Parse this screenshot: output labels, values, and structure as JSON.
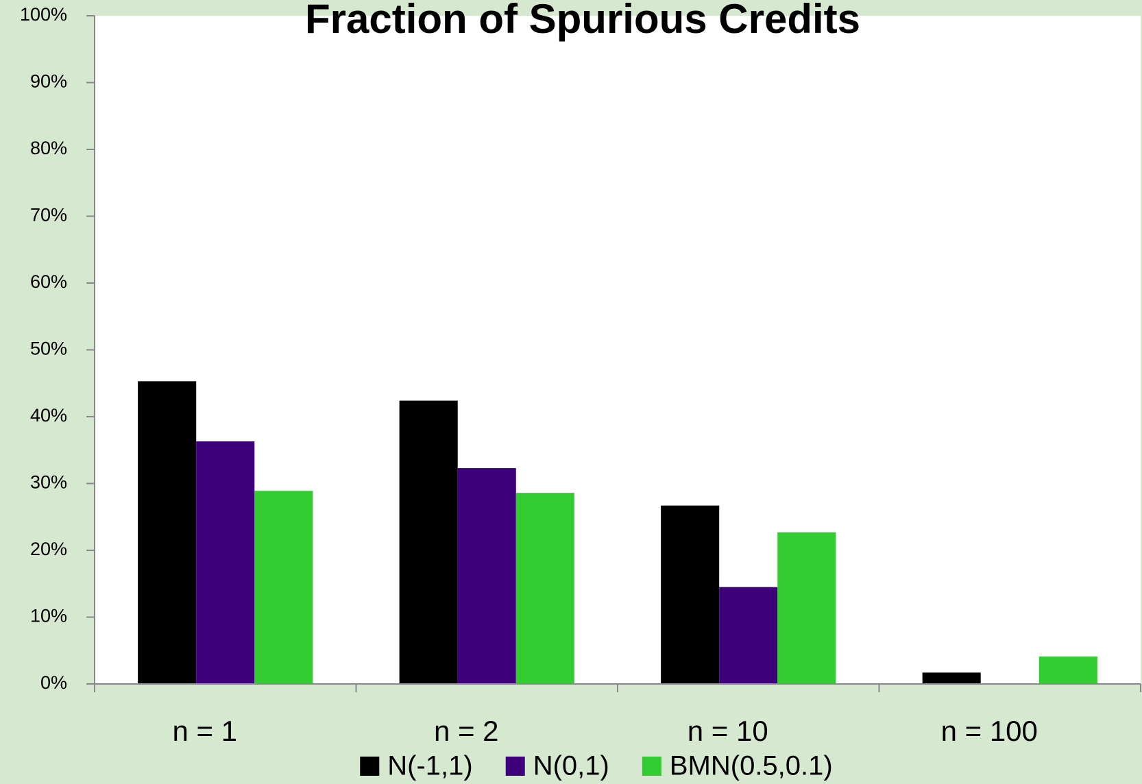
{
  "chart_data": {
    "type": "bar",
    "title": "Fraction of Spurious Credits",
    "categories": [
      "n = 1",
      "n = 2",
      "n = 10",
      "n = 100"
    ],
    "series": [
      {
        "name": "N(-1,1)",
        "color": "#000000",
        "values": [
          45.3,
          42.4,
          26.7,
          1.7
        ]
      },
      {
        "name": "N(0,1)",
        "color": "#3d007a",
        "values": [
          36.3,
          32.3,
          14.5,
          0
        ]
      },
      {
        "name": "BMN(0.5,0.1)",
        "color": "#33cc33",
        "values": [
          28.9,
          28.6,
          22.7,
          4.1
        ]
      }
    ],
    "ylim": [
      0,
      100
    ],
    "yticks": [
      {
        "value": 0,
        "label": "0%"
      },
      {
        "value": 10,
        "label": "10%"
      },
      {
        "value": 20,
        "label": "20%"
      },
      {
        "value": 30,
        "label": "30%"
      },
      {
        "value": 40,
        "label": "40%"
      },
      {
        "value": 50,
        "label": "50%"
      },
      {
        "value": 60,
        "label": "60%"
      },
      {
        "value": 70,
        "label": "70%"
      },
      {
        "value": 80,
        "label": "80%"
      },
      {
        "value": 90,
        "label": "90%"
      },
      {
        "value": 100,
        "label": "100%"
      }
    ],
    "legend": "bottom"
  }
}
